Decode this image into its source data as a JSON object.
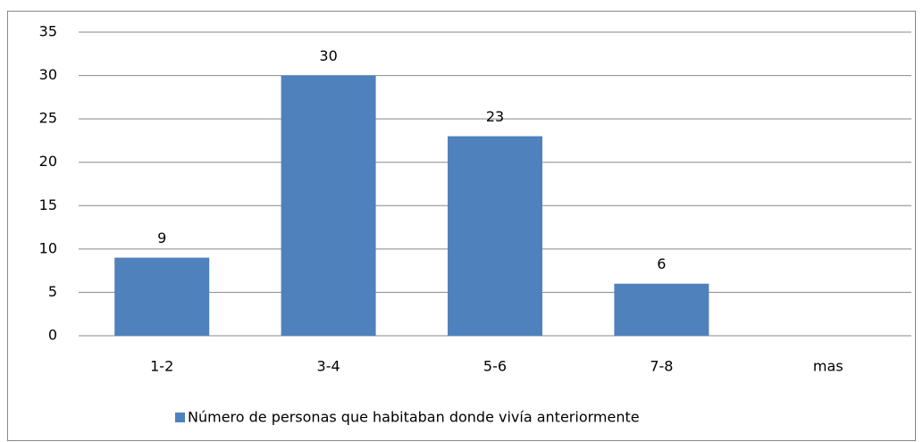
{
  "chart_data": {
    "type": "bar",
    "categories": [
      "1-2",
      "3-4",
      "5-6",
      "7-8",
      "mas"
    ],
    "series": [
      {
        "name": "Número de personas que habitaban donde vivía anteriormente",
        "color": "#4f81bd",
        "values": [
          9,
          30,
          23,
          6,
          null
        ]
      }
    ],
    "ylim": [
      0,
      35
    ],
    "yticks": [
      0,
      5,
      10,
      15,
      20,
      25,
      30,
      35
    ],
    "grid": true,
    "legend": "bottom"
  }
}
